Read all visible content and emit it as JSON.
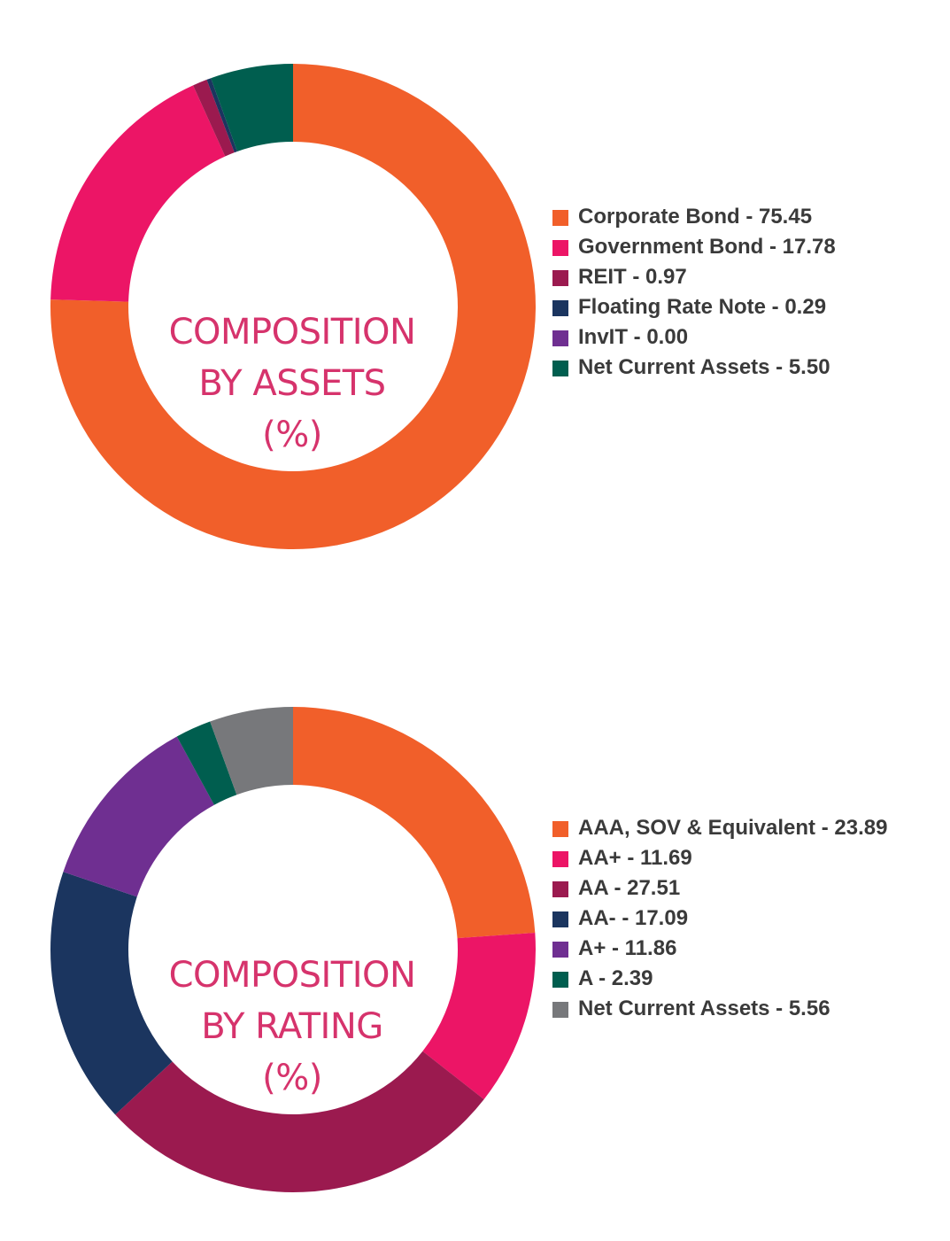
{
  "charts": {
    "assets": {
      "title_lines": [
        "COMPOSITION",
        "BY ASSETS",
        "(%)"
      ]
    },
    "rating": {
      "title_lines": [
        "COMPOSITION",
        "BY RATING",
        "(%)"
      ]
    }
  },
  "chart_data": [
    {
      "type": "pie",
      "title": "COMPOSITION BY ASSETS (%)",
      "legend_position": "right",
      "categories": [
        "Corporate Bond",
        "Government Bond",
        "REIT",
        "Floating Rate Note",
        "InvIT",
        "Net Current Assets"
      ],
      "values": [
        75.45,
        17.78,
        0.97,
        0.29,
        0.0,
        5.5
      ],
      "colors": [
        "#f15f2a",
        "#ec1566",
        "#9b1a4f",
        "#1b355f",
        "#6f2f91",
        "#005e4f"
      ],
      "legend_labels": [
        "Corporate Bond - 75.45",
        "Government Bond - 17.78",
        "REIT - 0.97",
        "Floating Rate Note - 0.29",
        "InvIT - 0.00",
        "Net Current Assets - 5.50"
      ]
    },
    {
      "type": "pie",
      "title": "COMPOSITION BY RATING (%)",
      "legend_position": "right",
      "categories": [
        "AAA, SOV & Equivalent",
        "AA+",
        "AA",
        "AA-",
        "A+",
        "A",
        "Net Current Assets"
      ],
      "values": [
        23.89,
        11.69,
        27.51,
        17.09,
        11.86,
        2.39,
        5.56
      ],
      "colors": [
        "#f15f2a",
        "#ec1566",
        "#9b1a4f",
        "#1b355f",
        "#6f2f91",
        "#005e4f",
        "#77787b"
      ],
      "legend_labels": [
        "AAA, SOV & Equivalent - 23.89",
        "AA+ - 11.69",
        "AA - 27.51",
        "AA- - 17.09",
        "A+ - 11.86",
        "A - 2.39",
        "Net Current Assets - 5.56"
      ]
    }
  ]
}
